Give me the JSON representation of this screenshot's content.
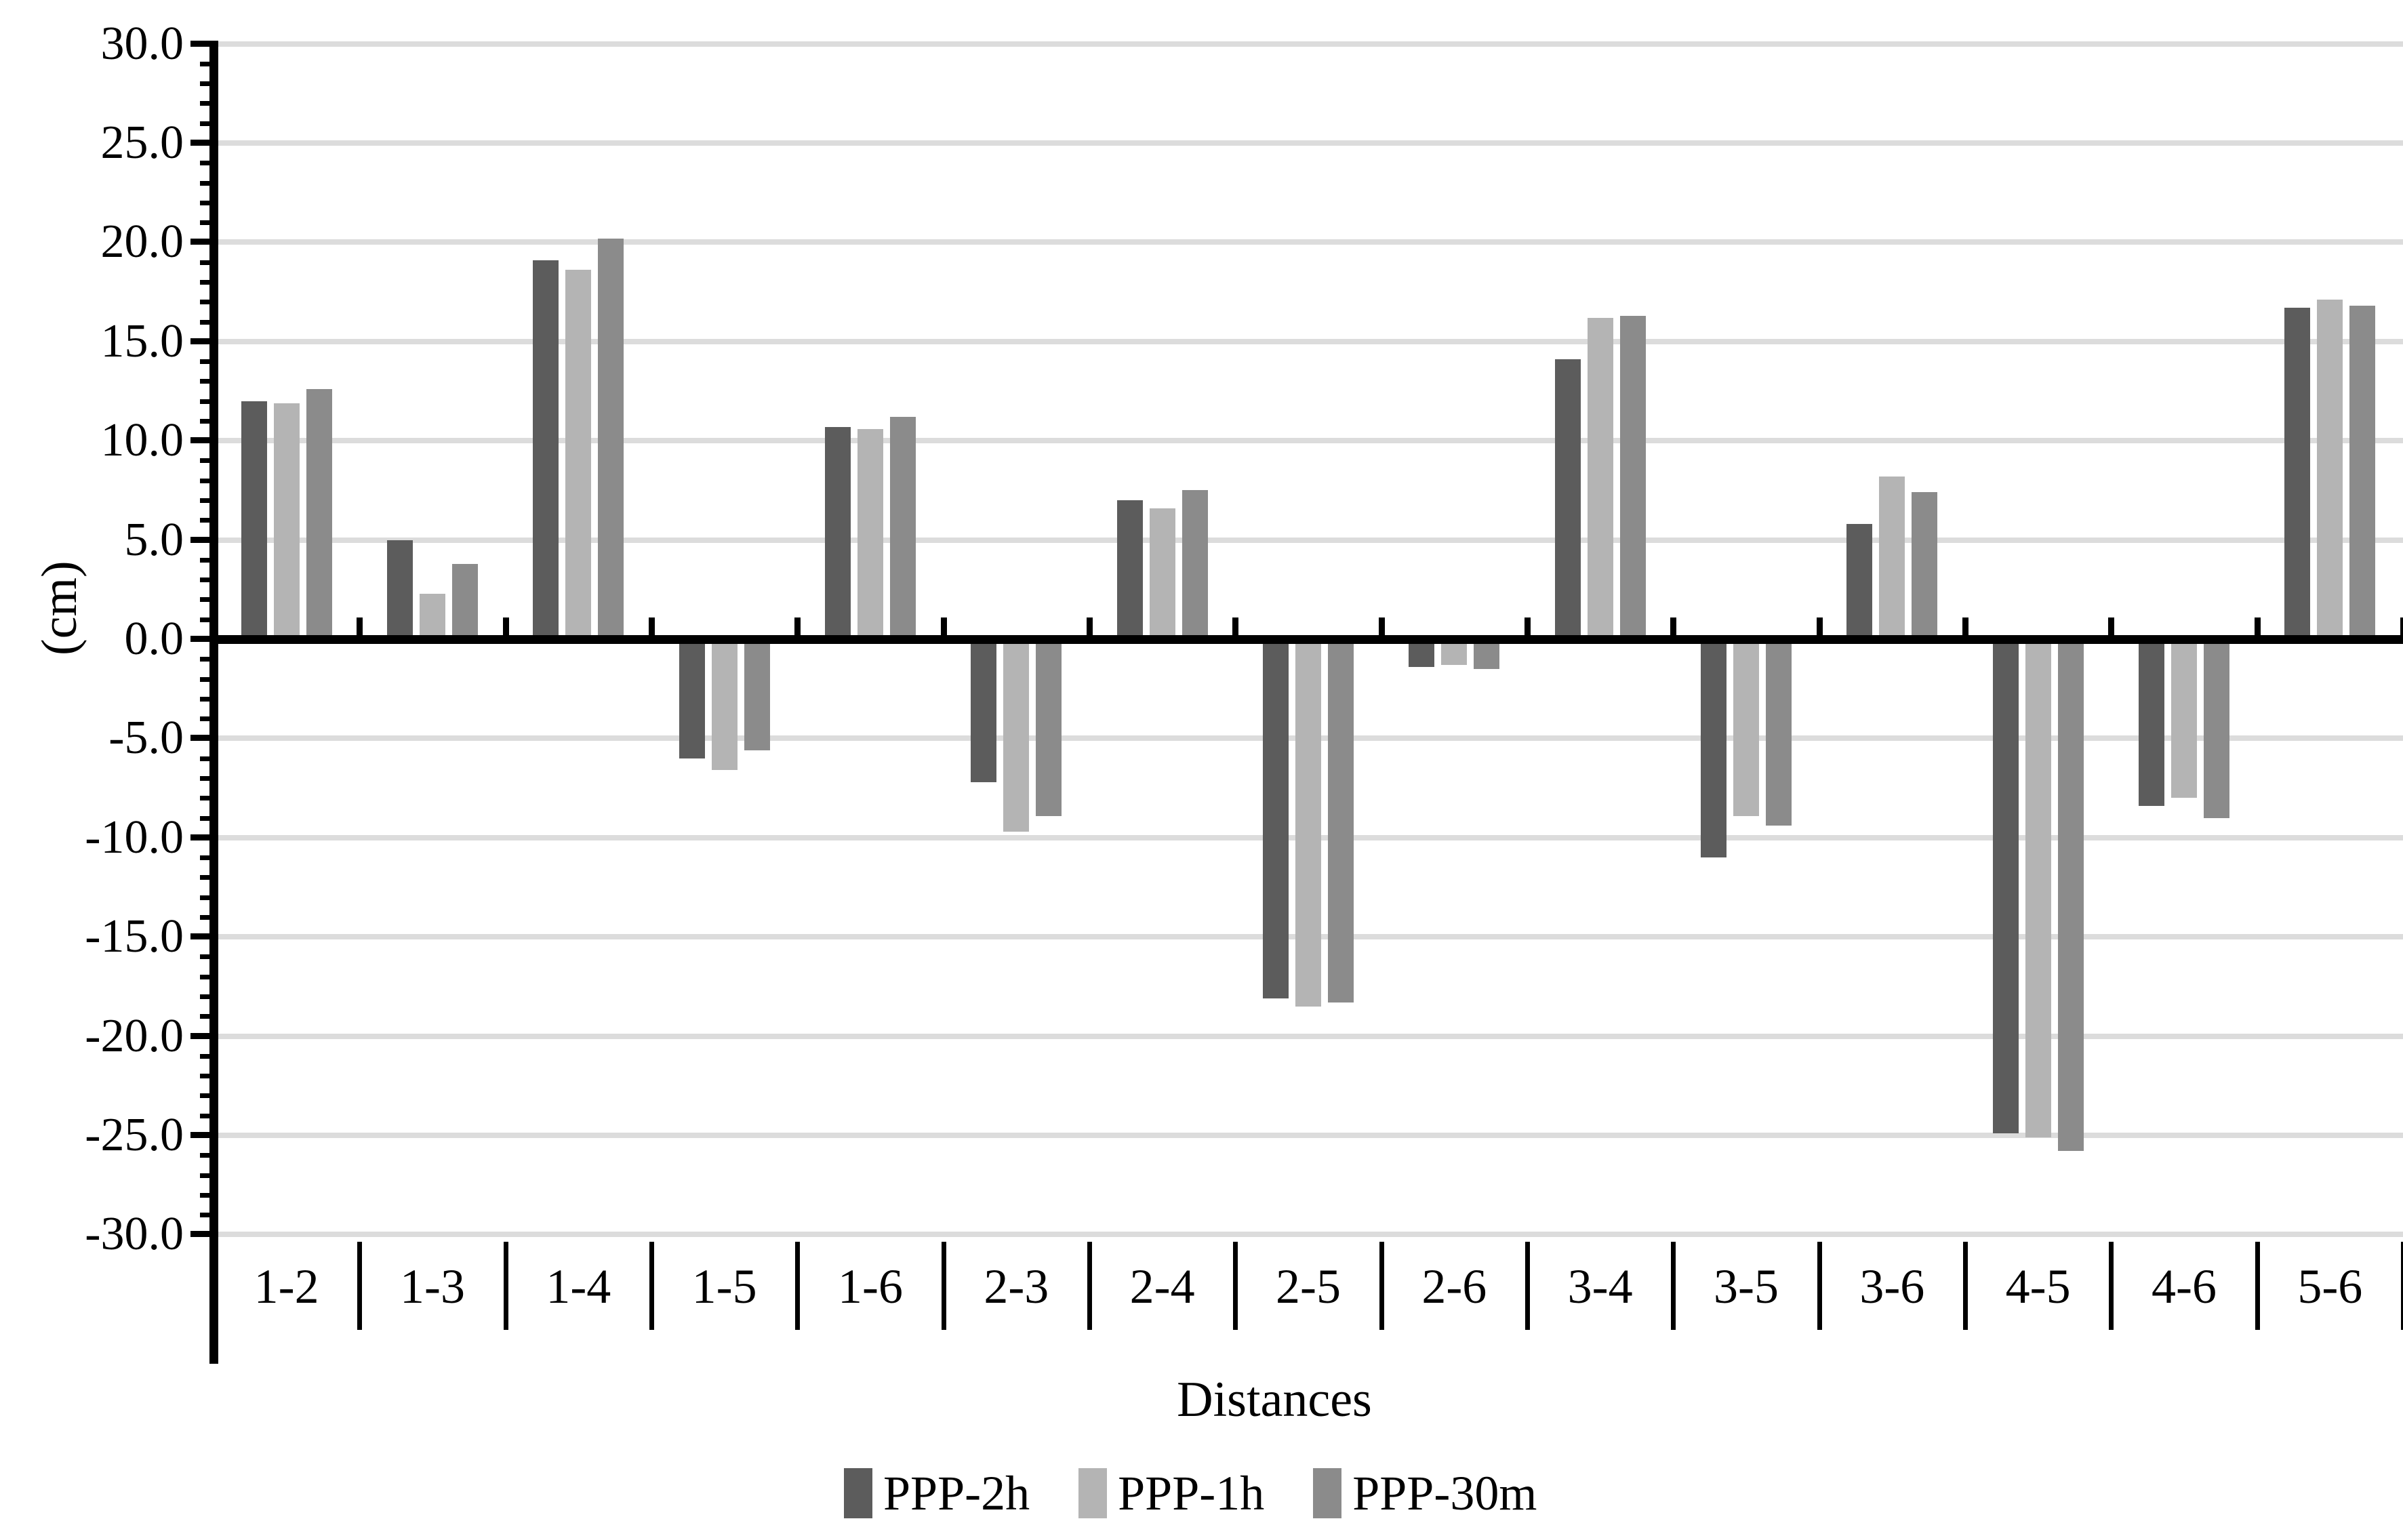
{
  "chart_data": {
    "type": "bar",
    "title": "",
    "xlabel": "Distances",
    "ylabel": "(cm)",
    "ylim": [
      -30.0,
      30.0
    ],
    "ytick_step": 5,
    "yminor_step": 1,
    "grid": true,
    "legend_position": "bottom",
    "yticklabels": [
      "30.0",
      "25.0",
      "20.0",
      "15.0",
      "10.0",
      "5.0",
      "0.0",
      "-5.0",
      "-10.0",
      "-15.0",
      "-20.0",
      "-25.0",
      "-30.0"
    ],
    "categories": [
      "1-2",
      "1-3",
      "1-4",
      "1-5",
      "1-6",
      "2-3",
      "2-4",
      "2-5",
      "2-6",
      "3-4",
      "3-5",
      "3-6",
      "4-5",
      "4-6",
      "5-6"
    ],
    "series": [
      {
        "name": "PPP-2h",
        "color": "#5c5c5c",
        "values": [
          12.0,
          5.0,
          19.1,
          -6.0,
          10.7,
          -7.2,
          7.0,
          -18.1,
          -1.4,
          14.1,
          -11.0,
          5.8,
          -24.9,
          -8.4,
          16.7
        ]
      },
      {
        "name": "PPP-1h",
        "color": "#b4b4b4",
        "values": [
          11.9,
          2.3,
          18.6,
          -6.6,
          10.6,
          -9.7,
          6.6,
          -18.5,
          -1.3,
          16.2,
          -8.9,
          8.2,
          -25.1,
          -8.0,
          17.1
        ]
      },
      {
        "name": "PPP-30m",
        "color": "#8b8b8b",
        "values": [
          12.6,
          3.8,
          20.2,
          -5.6,
          11.2,
          -8.9,
          7.5,
          -18.3,
          -1.5,
          16.3,
          -9.4,
          7.4,
          -25.8,
          -9.0,
          16.8
        ]
      }
    ],
    "colors": {
      "gridline": "#dcdcdc",
      "axis": "#000000",
      "background": "#ffffff"
    }
  }
}
